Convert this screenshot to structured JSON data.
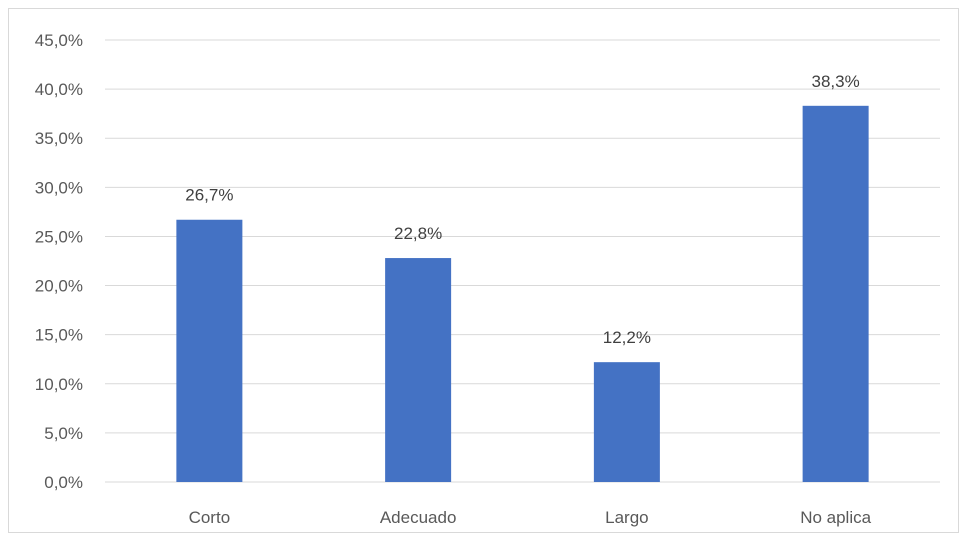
{
  "chart_data": {
    "type": "bar",
    "categories": [
      "Corto",
      "Adecuado",
      "Largo",
      "No aplica"
    ],
    "values": [
      26.7,
      22.8,
      12.2,
      38.3
    ],
    "data_labels": [
      "26,7%",
      "22,8%",
      "12,2%",
      "38,3%"
    ],
    "y_ticks": [
      0,
      5,
      10,
      15,
      20,
      25,
      30,
      35,
      40,
      45
    ],
    "y_tick_labels": [
      "0,0%",
      "5,0%",
      "10,0%",
      "15,0%",
      "20,0%",
      "25,0%",
      "30,0%",
      "35,0%",
      "40,0%",
      "45,0%"
    ],
    "ylim": [
      0,
      45
    ],
    "title": "",
    "xlabel": "",
    "ylabel": "",
    "grid": true,
    "legend": "none",
    "colors": {
      "bar": "#4472c4",
      "grid": "#d9d9d9",
      "axis": "#d9d9d9"
    }
  }
}
